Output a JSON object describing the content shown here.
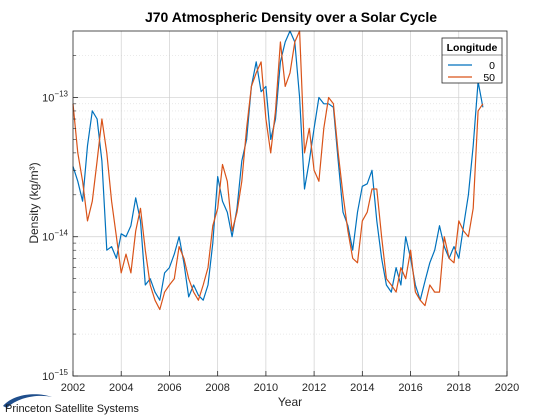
{
  "chart_data": {
    "type": "line",
    "title": "J70 Atmospheric Density over a Solar Cycle",
    "xlabel": "Year",
    "ylabel": "Density (kg/m³)",
    "xlim": [
      2002,
      2020
    ],
    "ylim": [
      1e-15,
      3e-13
    ],
    "yscale": "log",
    "grid": true,
    "xticks": [
      "2002",
      "2004",
      "2006",
      "2008",
      "2010",
      "2012",
      "2014",
      "2016",
      "2018",
      "2020"
    ],
    "yticks": [
      {
        "value": 1e-15,
        "base": "10",
        "exp": "−15"
      },
      {
        "value": 1e-14,
        "base": "10",
        "exp": "−14"
      },
      {
        "value": 1e-13,
        "base": "10",
        "exp": "−13"
      }
    ],
    "legend": {
      "title": "Longitude",
      "position": "top-right"
    },
    "series": [
      {
        "name": "0",
        "color": "#0072BD",
        "x": [
          2002.0,
          2002.2,
          2002.4,
          2002.6,
          2002.8,
          2003.0,
          2003.2,
          2003.4,
          2003.6,
          2003.8,
          2004.0,
          2004.2,
          2004.4,
          2004.6,
          2004.8,
          2005.0,
          2005.2,
          2005.4,
          2005.6,
          2005.8,
          2006.0,
          2006.2,
          2006.4,
          2006.6,
          2006.8,
          2007.0,
          2007.2,
          2007.4,
          2007.6,
          2007.8,
          2008.0,
          2008.2,
          2008.4,
          2008.6,
          2008.8,
          2009.0,
          2009.2,
          2009.4,
          2009.6,
          2009.8,
          2010.0,
          2010.2,
          2010.4,
          2010.6,
          2010.8,
          2011.0,
          2011.2,
          2011.4,
          2011.6,
          2011.8,
          2012.0,
          2012.2,
          2012.4,
          2012.6,
          2012.8,
          2013.0,
          2013.2,
          2013.4,
          2013.6,
          2013.8,
          2014.0,
          2014.2,
          2014.4,
          2014.6,
          2014.8,
          2015.0,
          2015.2,
          2015.4,
          2015.6,
          2015.8,
          2016.0,
          2016.2,
          2016.4,
          2016.6,
          2016.8,
          2017.0,
          2017.2,
          2017.4,
          2017.6,
          2017.8,
          2018.0,
          2018.2,
          2018.4,
          2018.6,
          2018.8,
          2019.0
        ],
        "y": [
          3.2e-14,
          2.5e-14,
          1.8e-14,
          4.5e-14,
          8e-14,
          7e-14,
          3.5e-14,
          8e-15,
          8.5e-15,
          7e-15,
          1.05e-14,
          1e-14,
          1.2e-14,
          1.9e-14,
          1.3e-14,
          4.5e-15,
          5e-15,
          4e-15,
          3.5e-15,
          5.5e-15,
          6e-15,
          7.5e-15,
          1e-14,
          6.5e-15,
          3.7e-15,
          4.5e-15,
          3.8e-15,
          3.5e-15,
          4.5e-15,
          9e-15,
          2.7e-14,
          1.8e-14,
          1.5e-14,
          1e-14,
          1.6e-14,
          3.5e-14,
          5e-14,
          1.2e-13,
          1.8e-13,
          1.1e-13,
          1.2e-13,
          5e-14,
          7e-14,
          1.8e-13,
          2.5e-13,
          3e-13,
          2.5e-13,
          1e-13,
          2.2e-14,
          3.5e-14,
          6e-14,
          1e-13,
          9e-14,
          9e-14,
          8.5e-14,
          3.5e-14,
          1.5e-14,
          1.2e-14,
          8e-15,
          1.5e-14,
          2.3e-14,
          2.4e-14,
          3e-14,
          1.3e-14,
          7e-15,
          4.5e-15,
          4e-15,
          6e-15,
          4.5e-15,
          1e-14,
          7e-15,
          4.5e-15,
          3.5e-15,
          4.8e-15,
          6.5e-15,
          8e-15,
          1.2e-14,
          8.5e-15,
          7e-15,
          8.5e-15,
          7e-15,
          1.2e-14,
          2e-14,
          4.5e-14,
          1.3e-13,
          8.5e-14
        ]
      },
      {
        "name": "50",
        "color": "#D95319",
        "x": [
          2002.0,
          2002.2,
          2002.4,
          2002.6,
          2002.8,
          2003.0,
          2003.2,
          2003.4,
          2003.6,
          2003.8,
          2004.0,
          2004.2,
          2004.4,
          2004.6,
          2004.8,
          2005.0,
          2005.2,
          2005.4,
          2005.6,
          2005.8,
          2006.0,
          2006.2,
          2006.4,
          2006.6,
          2006.8,
          2007.0,
          2007.2,
          2007.4,
          2007.6,
          2007.8,
          2008.0,
          2008.2,
          2008.4,
          2008.6,
          2008.8,
          2009.0,
          2009.2,
          2009.4,
          2009.6,
          2009.8,
          2010.0,
          2010.2,
          2010.4,
          2010.6,
          2010.8,
          2011.0,
          2011.2,
          2011.4,
          2011.6,
          2011.8,
          2012.0,
          2012.2,
          2012.4,
          2012.6,
          2012.8,
          2013.0,
          2013.2,
          2013.4,
          2013.6,
          2013.8,
          2014.0,
          2014.2,
          2014.4,
          2014.6,
          2014.8,
          2015.0,
          2015.2,
          2015.4,
          2015.6,
          2015.8,
          2016.0,
          2016.2,
          2016.4,
          2016.6,
          2016.8,
          2017.0,
          2017.2,
          2017.4,
          2017.6,
          2017.8,
          2018.0,
          2018.2,
          2018.4,
          2018.6,
          2018.8,
          2019.0
        ],
        "y": [
          9e-14,
          4e-14,
          2.5e-14,
          1.3e-14,
          1.8e-14,
          3.5e-14,
          7e-14,
          4e-14,
          1.8e-14,
          1e-14,
          5.5e-15,
          7.5e-15,
          5.5e-15,
          1.1e-14,
          1.6e-14,
          8e-15,
          4.5e-15,
          3.5e-15,
          3e-15,
          4e-15,
          4.5e-15,
          5e-15,
          8.5e-15,
          7e-15,
          5e-15,
          4e-15,
          3.5e-15,
          4.5e-15,
          6e-15,
          1.2e-14,
          1.6e-14,
          3.3e-14,
          2.5e-14,
          1.1e-14,
          1.5e-14,
          2.5e-14,
          6e-14,
          1.2e-13,
          1.5e-13,
          1.8e-13,
          7e-14,
          4e-14,
          8e-14,
          2.5e-13,
          1.2e-13,
          1.5e-13,
          2.5e-13,
          3e-13,
          4e-14,
          6e-14,
          3e-14,
          2.5e-14,
          6e-14,
          1e-13,
          9e-14,
          4e-14,
          2e-14,
          1.1e-14,
          7e-15,
          6.5e-15,
          1.3e-14,
          1.5e-14,
          2.2e-14,
          2.2e-14,
          1e-14,
          5e-15,
          4.5e-15,
          4e-15,
          6e-15,
          5e-15,
          8e-15,
          4e-15,
          3.5e-15,
          3.2e-15,
          4.5e-15,
          4e-15,
          4e-15,
          1e-14,
          7e-15,
          6.5e-15,
          1.3e-14,
          1.1e-14,
          1e-14,
          1.6e-14,
          8e-14,
          9e-14
        ]
      }
    ],
    "footer_text": "Princeton Satellite Systems"
  }
}
